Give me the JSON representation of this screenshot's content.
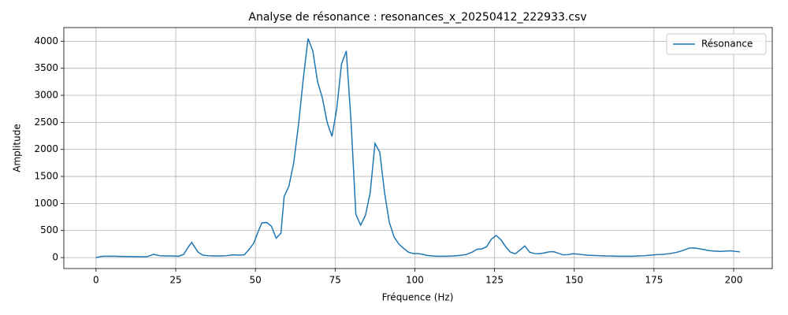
{
  "chart_data": {
    "type": "line",
    "title": "Analyse de résonance : resonances_x_20250412_222933.csv",
    "x_label": "Fréquence (Hz)",
    "y_label": "Amplitude",
    "x": [
      0,
      2,
      4,
      6,
      8,
      10,
      12,
      14,
      16,
      18,
      20,
      22,
      24,
      26,
      27.5,
      29,
      30,
      32,
      33.5,
      35,
      37,
      39,
      41,
      43,
      45,
      46.5,
      48,
      49.5,
      51,
      52,
      53.5,
      55,
      56.5,
      58,
      59,
      60.5,
      62,
      63.5,
      65,
      66.5,
      68,
      69.5,
      71,
      72.5,
      74,
      75.5,
      77,
      78.5,
      80,
      81.5,
      83,
      84.5,
      86,
      87.5,
      89,
      90.5,
      92,
      93.5,
      95,
      96.5,
      98,
      99.5,
      101,
      102.5,
      104,
      105.5,
      107,
      108.5,
      110,
      112,
      114,
      116,
      118,
      119.5,
      121,
      122.5,
      124,
      125.5,
      127,
      128.5,
      130,
      131.5,
      133,
      134.5,
      136,
      137.5,
      139,
      140.5,
      142,
      143.5,
      145,
      146.5,
      148,
      149.5,
      151,
      152.5,
      154,
      156,
      158,
      160,
      162,
      164,
      166,
      168,
      170,
      172,
      174,
      176,
      178,
      180,
      182,
      184,
      186,
      187.5,
      189,
      190.5,
      192,
      194,
      196,
      197.5,
      199,
      200.5,
      202
    ],
    "series": [
      {
        "name": "Résonance",
        "color": "#1f77b4",
        "values": [
          0,
          25,
          25,
          25,
          22,
          20,
          18,
          15,
          15,
          60,
          35,
          30,
          30,
          25,
          60,
          200,
          280,
          100,
          45,
          35,
          30,
          30,
          35,
          50,
          45,
          50,
          150,
          270,
          500,
          640,
          650,
          580,
          360,
          450,
          1130,
          1320,
          1750,
          2450,
          3300,
          4050,
          3820,
          3250,
          2950,
          2500,
          2240,
          2750,
          3580,
          3820,
          2500,
          800,
          600,
          780,
          1200,
          2110,
          1950,
          1200,
          650,
          380,
          250,
          170,
          100,
          75,
          75,
          60,
          40,
          30,
          25,
          25,
          25,
          30,
          40,
          55,
          100,
          155,
          160,
          200,
          340,
          410,
          330,
          200,
          100,
          70,
          140,
          215,
          100,
          75,
          70,
          85,
          105,
          110,
          80,
          50,
          55,
          70,
          65,
          55,
          45,
          40,
          35,
          30,
          28,
          25,
          25,
          25,
          30,
          35,
          45,
          55,
          60,
          75,
          95,
          130,
          175,
          180,
          165,
          150,
          130,
          120,
          115,
          120,
          125,
          115,
          105
        ]
      }
    ],
    "xlim": [
      -10.1,
      212.1
    ],
    "ylim": [
      -202.5,
      4252.5
    ],
    "xticks": [
      0,
      25,
      50,
      75,
      100,
      125,
      150,
      175,
      200
    ],
    "yticks": [
      0,
      500,
      1000,
      1500,
      2000,
      2500,
      3000,
      3500,
      4000
    ],
    "grid": true,
    "legend": "upper right"
  }
}
